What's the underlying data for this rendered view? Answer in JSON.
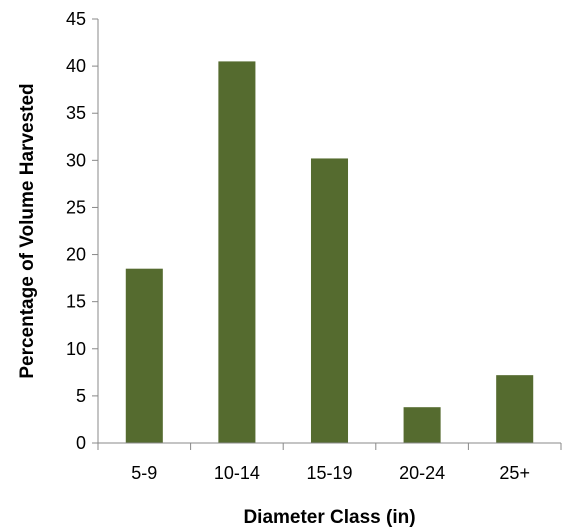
{
  "chart_data": {
    "type": "bar",
    "title": "",
    "xlabel": "Diameter Class (in)",
    "ylabel": "Percentage of Volume Harvested",
    "categories": [
      "5-9",
      "10-14",
      "15-19",
      "20-24",
      "25+"
    ],
    "values": [
      18.5,
      40.5,
      30.2,
      3.8,
      7.2
    ],
    "ylim": [
      0,
      45
    ],
    "yticks": [
      "0",
      "5",
      "10",
      "15",
      "20",
      "25",
      "30",
      "35",
      "40",
      "45"
    ],
    "grid": false,
    "legend": "none",
    "bar_color": "#556b2f"
  }
}
